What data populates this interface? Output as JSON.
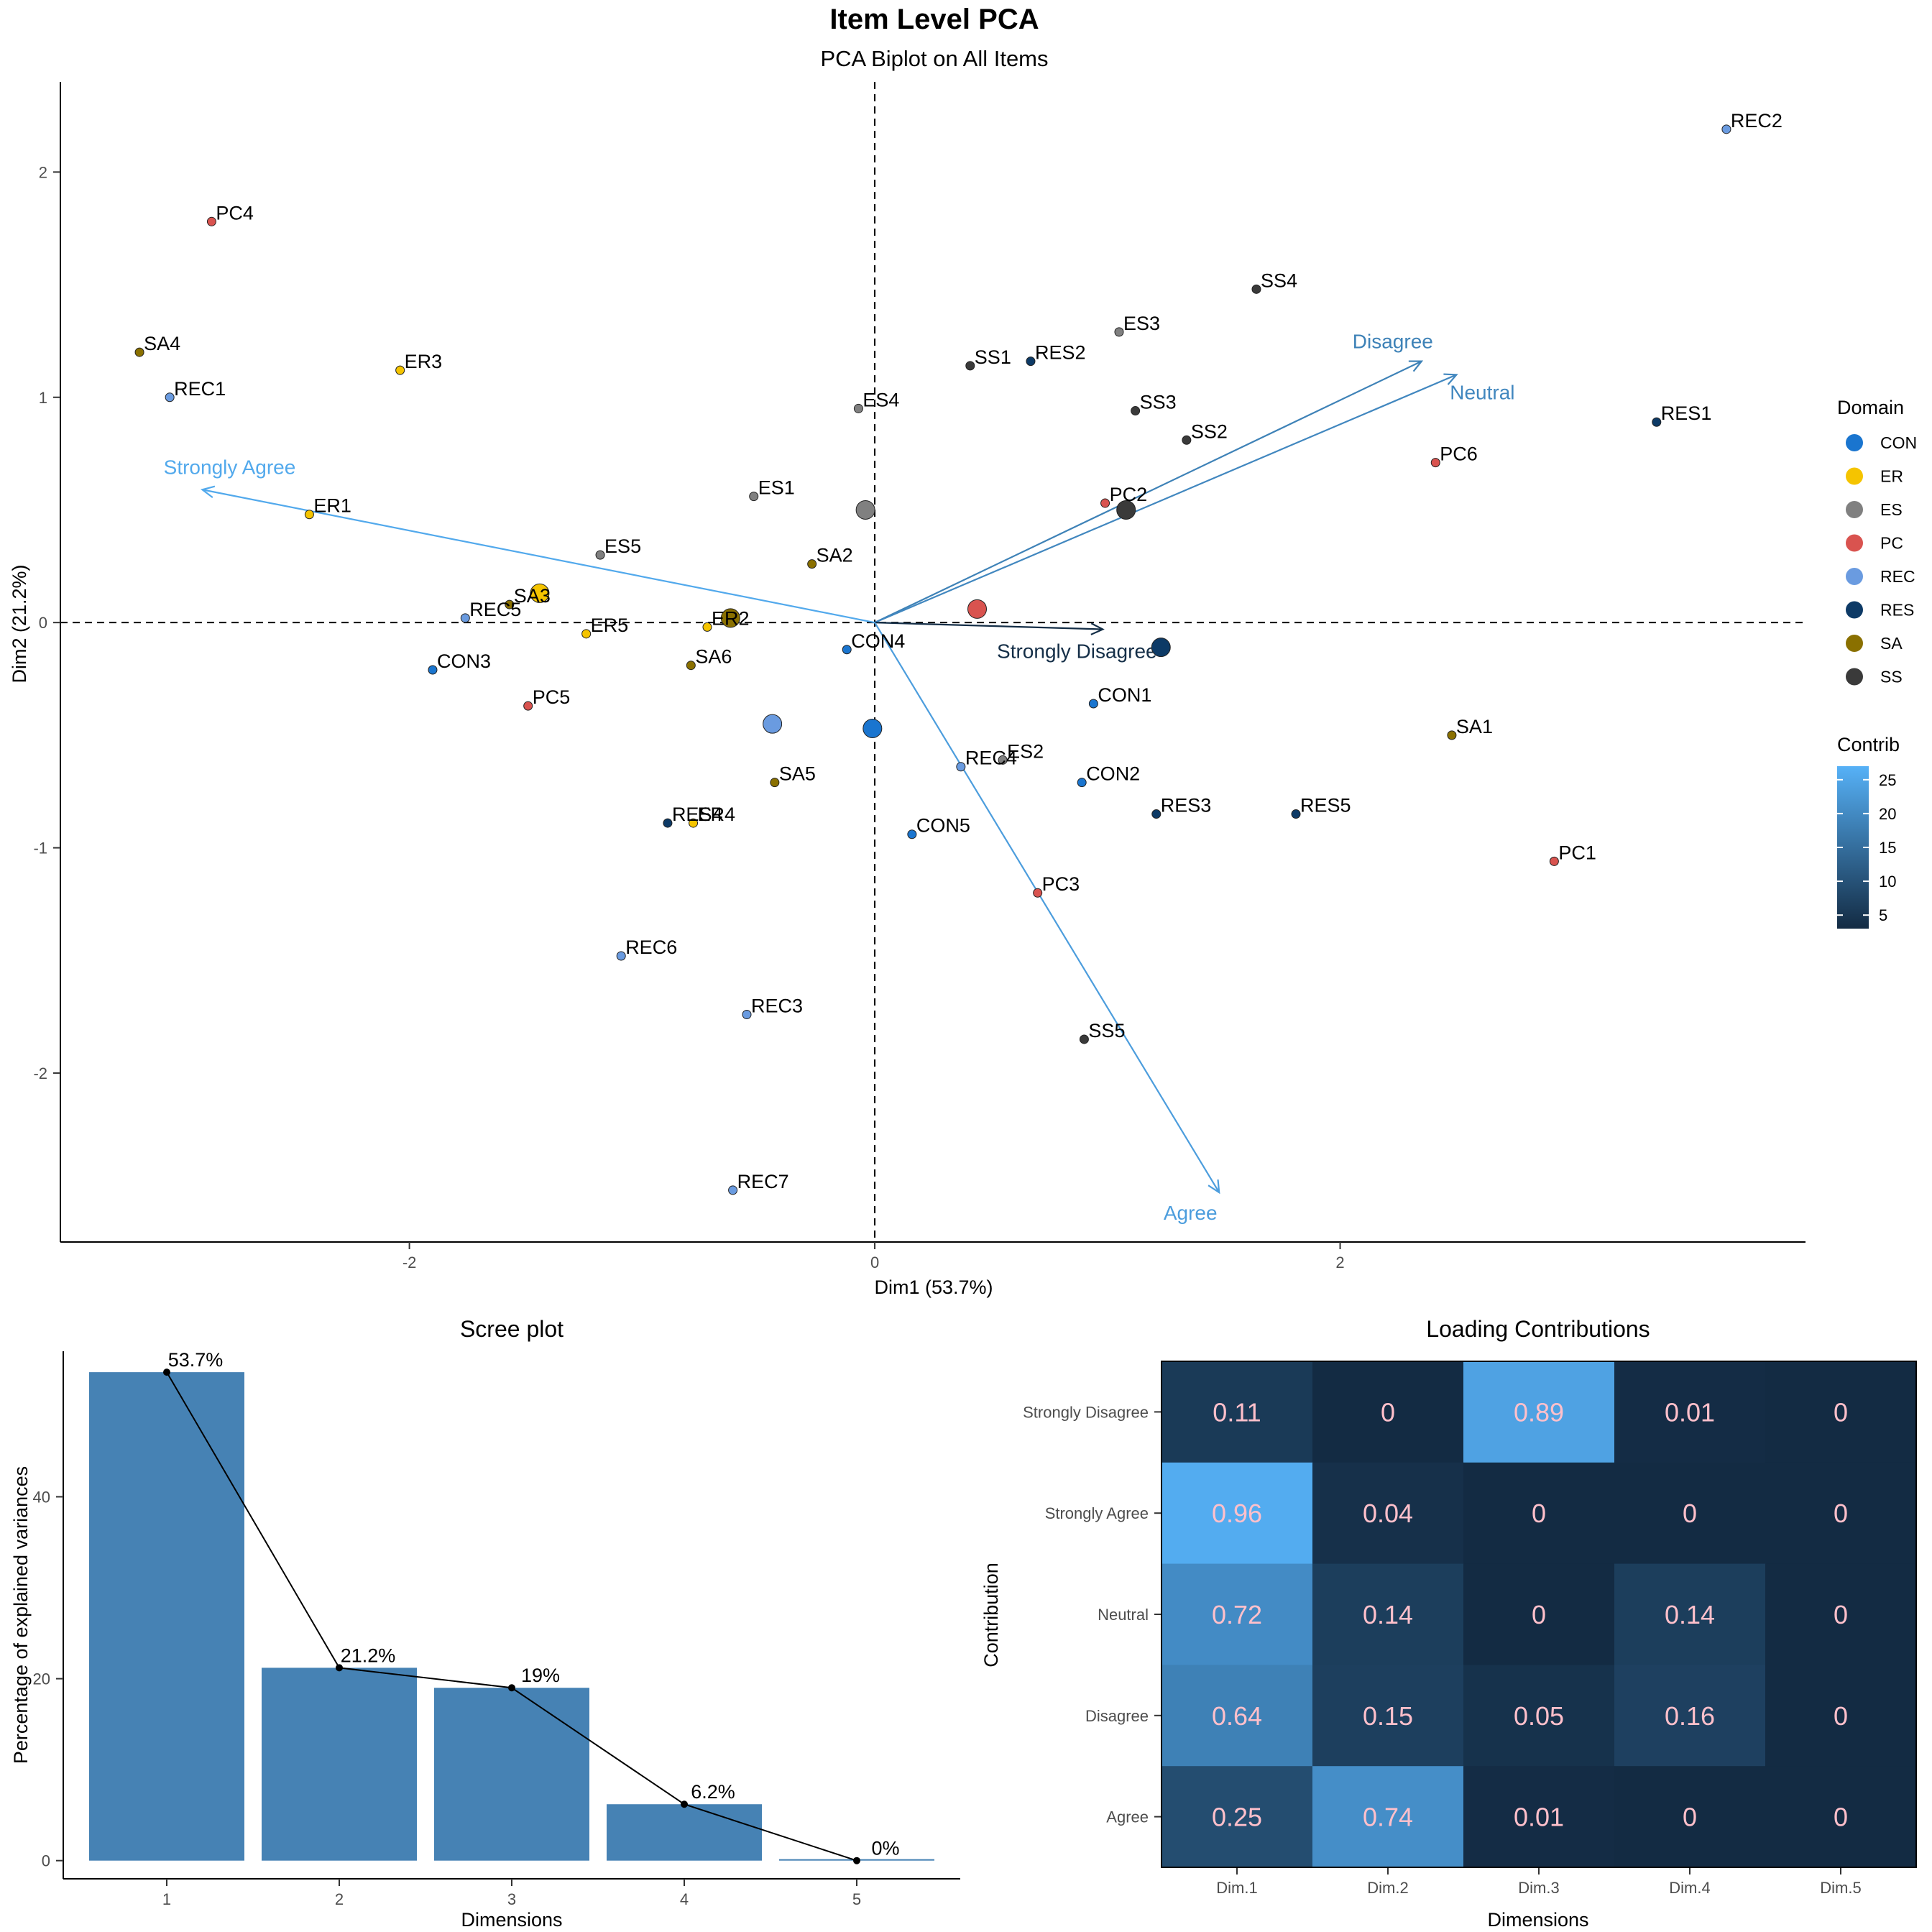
{
  "figure": {
    "title": "Item Level PCA"
  },
  "chart_data": [
    {
      "type": "scatter",
      "subtitle": "PCA Biplot on All Items",
      "xlabel": "Dim1 (53.7%)",
      "ylabel": "Dim2 (21.2%)",
      "xlim": [
        -3.5,
        4.0
      ],
      "ylim": [
        -2.75,
        2.4
      ],
      "xticks": [
        -2,
        0,
        2
      ],
      "yticks": [
        -2,
        -1,
        0,
        1,
        2
      ],
      "grid": false,
      "reference_lines": {
        "x": 0,
        "y": 0,
        "style": "dashed"
      },
      "domain_colors": {
        "CON": "#1a75cf",
        "ER": "#f5c400",
        "ES": "#808080",
        "PC": "#d9534f",
        "REC": "#6a9be0",
        "RES": "#0d3a66",
        "SA": "#8a7000",
        "SS": "#3a3a3a"
      },
      "legend_domain": {
        "title": "Domain",
        "placement": "right",
        "entries": [
          "CON",
          "ER",
          "ES",
          "PC",
          "REC",
          "RES",
          "SA",
          "SS"
        ]
      },
      "legend_contrib": {
        "title": "Contrib",
        "ticks": [
          5,
          10,
          15,
          20,
          25
        ],
        "range": [
          3,
          27
        ],
        "color_low": "#132b43",
        "color_high": "#56b1f7"
      },
      "points": [
        {
          "label": "REC2",
          "domain": "REC",
          "x": 3.66,
          "y": 2.19
        },
        {
          "label": "PC4",
          "domain": "PC",
          "x": -2.85,
          "y": 1.78
        },
        {
          "label": "SA4",
          "domain": "SA",
          "x": -3.16,
          "y": 1.2
        },
        {
          "label": "ER3",
          "domain": "ER",
          "x": -2.04,
          "y": 1.12
        },
        {
          "label": "REC1",
          "domain": "REC",
          "x": -3.03,
          "y": 1.0
        },
        {
          "label": "ER1",
          "domain": "ER",
          "x": -2.43,
          "y": 0.48
        },
        {
          "label": "ES5",
          "domain": "ES",
          "x": -1.18,
          "y": 0.3
        },
        {
          "label": "SA3",
          "domain": "SA",
          "x": -1.57,
          "y": 0.08
        },
        {
          "label": "REC5",
          "domain": "REC",
          "x": -1.76,
          "y": 0.02
        },
        {
          "label": "ER5",
          "domain": "ER",
          "x": -1.24,
          "y": -0.05
        },
        {
          "label": "ER2",
          "domain": "ER",
          "x": -0.72,
          "y": -0.02
        },
        {
          "label": "CON3",
          "domain": "CON",
          "x": -1.9,
          "y": -0.21
        },
        {
          "label": "PC5",
          "domain": "PC",
          "x": -1.49,
          "y": -0.37
        },
        {
          "label": "ES1",
          "domain": "ES",
          "x": -0.52,
          "y": 0.56
        },
        {
          "label": "SA2",
          "domain": "SA",
          "x": -0.27,
          "y": 0.26
        },
        {
          "label": "SA6",
          "domain": "SA",
          "x": -0.79,
          "y": -0.19
        },
        {
          "label": "ES4",
          "domain": "ES",
          "x": -0.07,
          "y": 0.95
        },
        {
          "label": "CON4",
          "domain": "CON",
          "x": -0.12,
          "y": -0.12
        },
        {
          "label": "SA5",
          "domain": "SA",
          "x": -0.43,
          "y": -0.71
        },
        {
          "label": "RES4",
          "domain": "RES",
          "x": -0.89,
          "y": -0.89
        },
        {
          "label": "ER4",
          "domain": "ER",
          "x": -0.78,
          "y": -0.89
        },
        {
          "label": "REC6",
          "domain": "REC",
          "x": -1.09,
          "y": -1.48
        },
        {
          "label": "REC3",
          "domain": "REC",
          "x": -0.55,
          "y": -1.74
        },
        {
          "label": "REC7",
          "domain": "REC",
          "x": -0.61,
          "y": -2.52
        },
        {
          "label": "CON5",
          "domain": "CON",
          "x": 0.16,
          "y": -0.94
        },
        {
          "label": "REC4",
          "domain": "REC",
          "x": 0.37,
          "y": -0.64
        },
        {
          "label": "ES2",
          "domain": "ES",
          "x": 0.55,
          "y": -0.61
        },
        {
          "label": "PC3",
          "domain": "PC",
          "x": 0.7,
          "y": -1.2
        },
        {
          "label": "CON1",
          "domain": "CON",
          "x": 0.94,
          "y": -0.36
        },
        {
          "label": "CON2",
          "domain": "CON",
          "x": 0.89,
          "y": -0.71
        },
        {
          "label": "RES3",
          "domain": "RES",
          "x": 1.21,
          "y": -0.85
        },
        {
          "label": "SS5",
          "domain": "SS",
          "x": 0.9,
          "y": -1.85
        },
        {
          "label": "SS1",
          "domain": "SS",
          "x": 0.41,
          "y": 1.14
        },
        {
          "label": "RES2",
          "domain": "RES",
          "x": 0.67,
          "y": 1.16
        },
        {
          "label": "ES3",
          "domain": "ES",
          "x": 1.05,
          "y": 1.29
        },
        {
          "label": "SS3",
          "domain": "SS",
          "x": 1.12,
          "y": 0.94
        },
        {
          "label": "SS2",
          "domain": "SS",
          "x": 1.34,
          "y": 0.81
        },
        {
          "label": "SS4",
          "domain": "SS",
          "x": 1.64,
          "y": 1.48
        },
        {
          "label": "PC2",
          "domain": "PC",
          "x": 0.99,
          "y": 0.53
        },
        {
          "label": "PC6",
          "domain": "PC",
          "x": 2.41,
          "y": 0.71
        },
        {
          "label": "RES1",
          "domain": "RES",
          "x": 3.36,
          "y": 0.89
        },
        {
          "label": "SA1",
          "domain": "SA",
          "x": 2.48,
          "y": -0.5
        },
        {
          "label": "RES5",
          "domain": "RES",
          "x": 1.81,
          "y": -0.85
        },
        {
          "label": "PC1",
          "domain": "PC",
          "x": 2.92,
          "y": -1.06
        }
      ],
      "centroids": [
        {
          "domain": "SS",
          "x": 1.08,
          "y": 0.5
        },
        {
          "domain": "PC",
          "x": 0.44,
          "y": 0.06
        },
        {
          "domain": "RES",
          "x": 1.23,
          "y": -0.11
        },
        {
          "domain": "ES",
          "x": -0.04,
          "y": 0.5
        },
        {
          "domain": "CON",
          "x": -0.01,
          "y": -0.47
        },
        {
          "domain": "REC",
          "x": -0.44,
          "y": -0.45
        },
        {
          "domain": "SA",
          "x": -0.62,
          "y": 0.02
        },
        {
          "domain": "ER",
          "x": -1.44,
          "y": 0.13
        }
      ],
      "arrows": [
        {
          "label": "Strongly Agree",
          "x": -2.89,
          "y": 0.59,
          "contrib": 25.5
        },
        {
          "label": "Disagree",
          "x": 2.35,
          "y": 1.16,
          "contrib": 18.5
        },
        {
          "label": "Neutral",
          "x": 2.5,
          "y": 1.1,
          "contrib": 19.5
        },
        {
          "label": "Strongly Disagree",
          "x": 0.98,
          "y": -0.03,
          "contrib": 3.5
        },
        {
          "label": "Agree",
          "x": 1.48,
          "y": -2.53,
          "contrib": 23.5
        }
      ]
    },
    {
      "type": "bar",
      "title": "Scree plot",
      "xlabel": "Dimensions",
      "ylabel": "Percentage of explained variances",
      "categories": [
        "1",
        "2",
        "3",
        "4",
        "5"
      ],
      "values": [
        53.7,
        21.2,
        19,
        6.2,
        0
      ],
      "value_labels": [
        "53.7%",
        "21.2%",
        "19%",
        "6.2%",
        "0%"
      ],
      "ylim": [
        -2,
        56
      ],
      "yticks": [
        0,
        20,
        40
      ],
      "bar_color": "#4682b4",
      "line": true
    },
    {
      "type": "heatmap",
      "title": "Loading Contributions",
      "xlabel": "Dimensions",
      "ylabel": "Contribution",
      "columns": [
        "Dim.1",
        "Dim.2",
        "Dim.3",
        "Dim.4",
        "Dim.5"
      ],
      "rows": [
        "Strongly Disagree",
        "Strongly Agree",
        "Neutral",
        "Disagree",
        "Agree"
      ],
      "values": [
        [
          "0.11",
          "0",
          "0.89",
          "0.01",
          "0"
        ],
        [
          "0.96",
          "0.04",
          "0",
          "0",
          "0"
        ],
        [
          "0.72",
          "0.14",
          "0",
          "0.14",
          "0"
        ],
        [
          "0.64",
          "0.15",
          "0.05",
          "0.16",
          "0"
        ],
        [
          "0.25",
          "0.74",
          "0.01",
          "0",
          "0"
        ]
      ],
      "color_low": "#132b43",
      "color_high": "#56b1f7",
      "text_color": "#ffc0cb"
    }
  ]
}
